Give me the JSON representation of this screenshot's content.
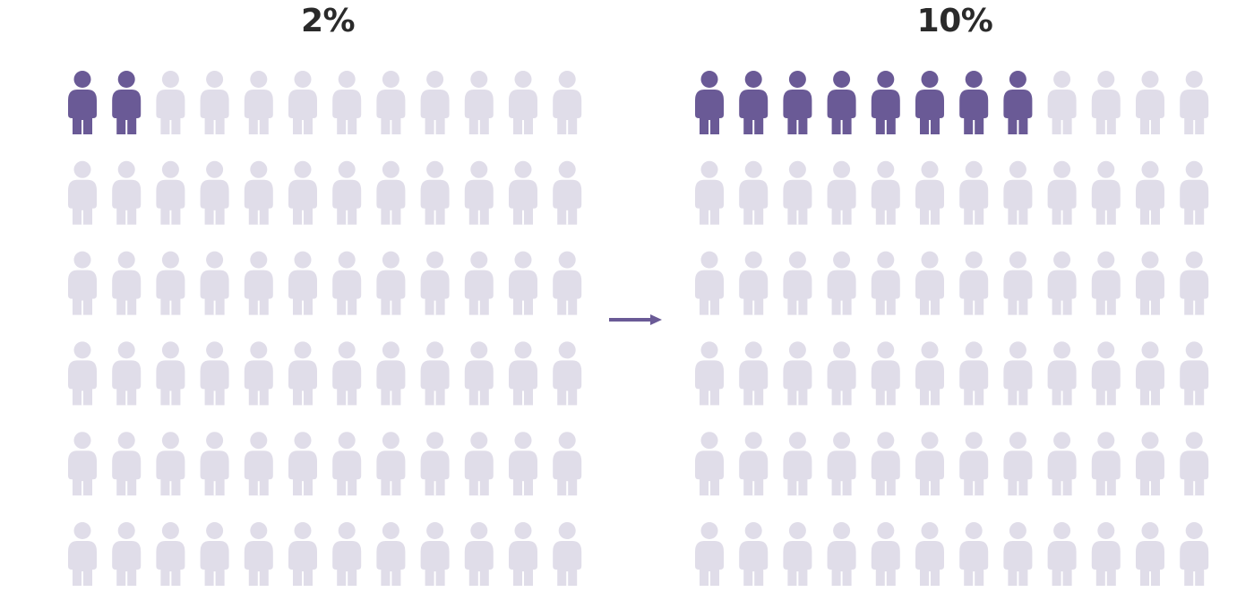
{
  "colors": {
    "highlight": "#6a5a96",
    "base": "#e0dde9",
    "title": "#2a2a2a",
    "arrow": "#6a5a96"
  },
  "icon": "person-icon",
  "chart_data": [
    {
      "type": "pictogram",
      "title": "2%",
      "rows": 6,
      "columns": 12,
      "total_icons": 72,
      "highlighted_icons": 2
    },
    {
      "type": "pictogram",
      "title": "10%",
      "rows": 6,
      "columns": 12,
      "total_icons": 72,
      "highlighted_icons": 8
    }
  ]
}
